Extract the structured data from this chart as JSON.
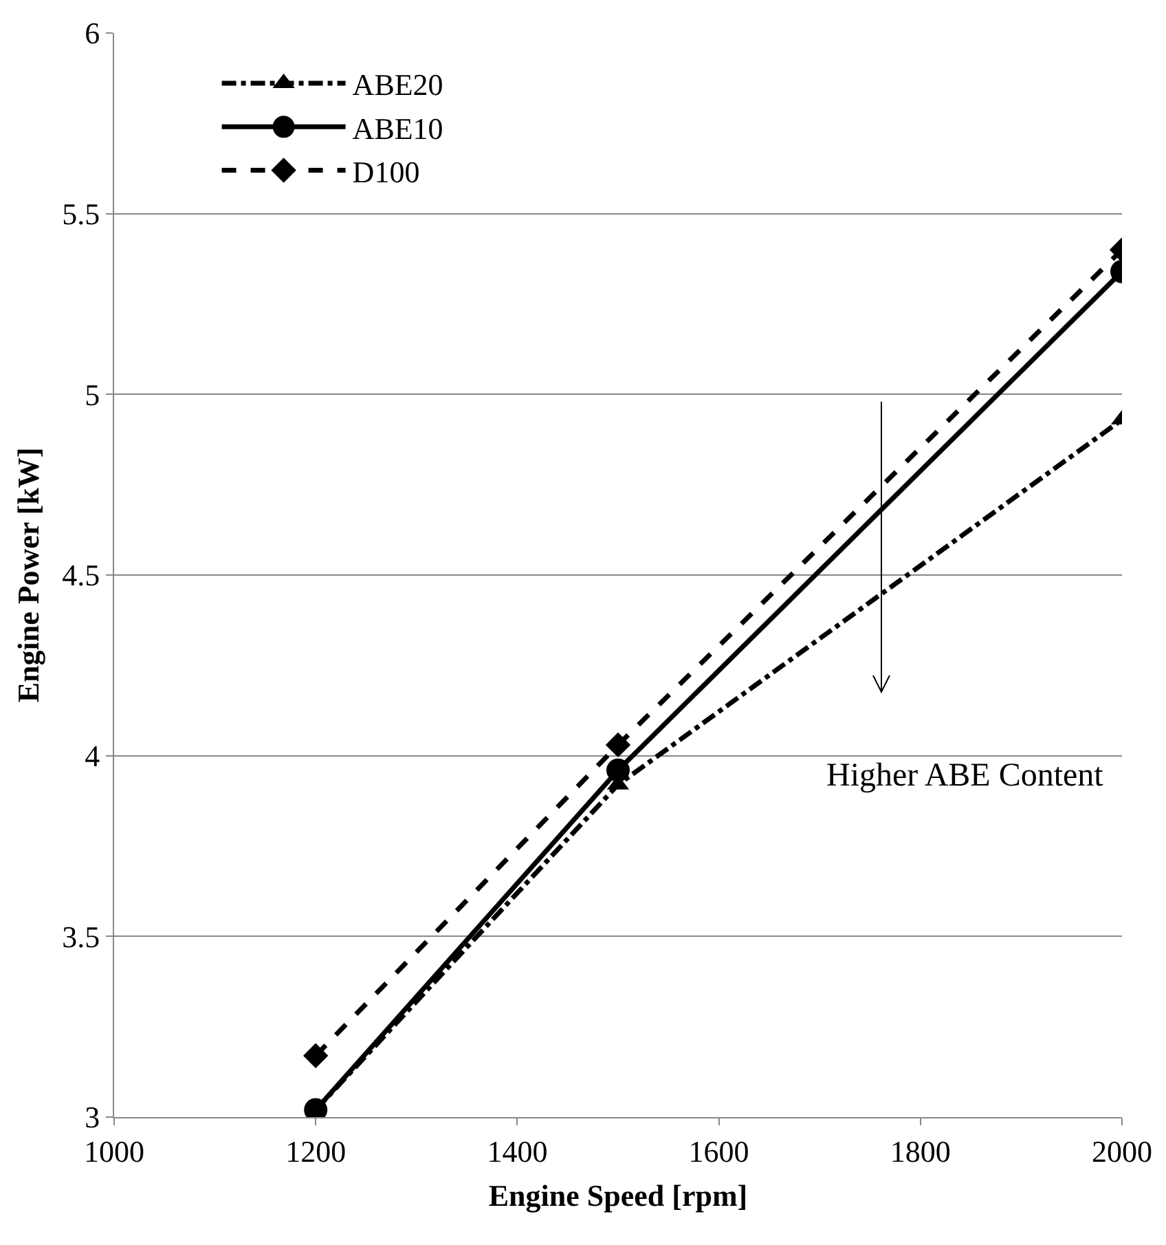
{
  "chart_data": {
    "type": "line",
    "xlabel": "Engine Speed [rpm]",
    "ylabel": "Engine Power [kW]",
    "x": [
      1200,
      1500,
      2000
    ],
    "series": [
      {
        "name": "ABE20",
        "color": "#000000",
        "values": [
          3.02,
          3.92,
          4.93
        ],
        "marker": "triangle",
        "line_style": "dashdot"
      },
      {
        "name": "ABE10",
        "color": "#000000",
        "values": [
          3.02,
          3.96,
          5.34
        ],
        "marker": "circle",
        "line_style": "solid"
      },
      {
        "name": "D100",
        "color": "#000000",
        "values": [
          3.17,
          4.03,
          5.4
        ],
        "marker": "diamond",
        "line_style": "dashed"
      }
    ],
    "xlim": [
      1000,
      2000
    ],
    "xticks": [
      1000,
      1200,
      1400,
      1600,
      1800,
      2000
    ],
    "ylim": [
      3,
      6
    ],
    "yticks": [
      3,
      3.5,
      4,
      4.5,
      5,
      5.5,
      6
    ],
    "grid": "y",
    "legend": "top left",
    "annotations": [
      "Higher ABE Content"
    ]
  }
}
